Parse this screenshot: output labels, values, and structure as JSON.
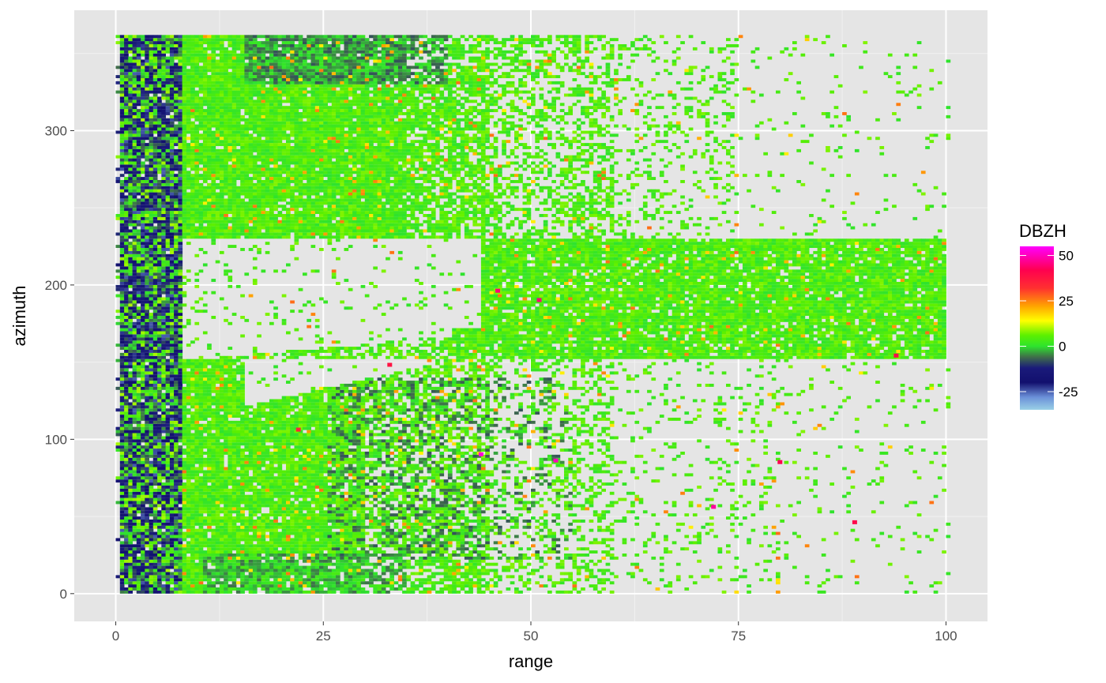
{
  "chart_data": {
    "type": "heatmap",
    "title": "",
    "xlabel": "range",
    "ylabel": "azimuth",
    "xlim": [
      -5,
      105
    ],
    "ylim": [
      -18,
      378
    ],
    "x_ticks": [
      0,
      25,
      50,
      75,
      100
    ],
    "x_tick_labels": [
      "0",
      "25",
      "50",
      "75",
      "100"
    ],
    "y_ticks": [
      0,
      100,
      200,
      300
    ],
    "y_tick_labels": [
      "0",
      "100",
      "200",
      "300"
    ],
    "grid": true,
    "range_resolution": 0.5,
    "azimuth_resolution": 1,
    "legend": {
      "title": "DBZH",
      "position": "right",
      "limits": [
        -35,
        55
      ],
      "breaks": [
        -25,
        0,
        25,
        50
      ],
      "break_labels": [
        "-25",
        "0",
        "25",
        "50"
      ],
      "colors": [
        {
          "value": -35,
          "color": "#9ad0e6"
        },
        {
          "value": -28,
          "color": "#6a8fd8"
        },
        {
          "value": -20,
          "color": "#12106e"
        },
        {
          "value": -12,
          "color": "#1a1a7a"
        },
        {
          "value": -6,
          "color": "#3f6d4a"
        },
        {
          "value": 0,
          "color": "#2ee32e"
        },
        {
          "value": 6,
          "color": "#5cf000"
        },
        {
          "value": 14,
          "color": "#ffff00"
        },
        {
          "value": 22,
          "color": "#ffa500"
        },
        {
          "value": 32,
          "color": "#ff3030"
        },
        {
          "value": 42,
          "color": "#ff0050"
        },
        {
          "value": 55,
          "color": "#ff00ff"
        }
      ]
    },
    "summary": {
      "range_min": 0,
      "range_max": 100,
      "azimuth_min": 0,
      "azimuth_max": 360,
      "echo_regions": [
        {
          "feature": "dense near-range ring",
          "range": [
            0,
            8
          ],
          "azimuth": [
            0,
            360
          ],
          "typical_dbzh": -15
        },
        {
          "feature": "main echo north",
          "range": [
            3,
            72
          ],
          "azimuth": [
            230,
            360
          ],
          "typical_dbzh": 4
        },
        {
          "feature": "main echo south",
          "range": [
            3,
            65
          ],
          "azimuth": [
            0,
            150
          ],
          "typical_dbzh": 3
        },
        {
          "feature": "east-southeast band",
          "range": [
            40,
            100
          ],
          "azimuth": [
            150,
            240
          ],
          "typical_dbzh": 6
        },
        {
          "feature": "clear gap",
          "range": [
            8,
            45
          ],
          "azimuth": [
            170,
            240
          ],
          "typical_dbzh": null
        }
      ],
      "hot_spots": [
        {
          "range": 46,
          "azimuth": 196,
          "dbzh": 45
        },
        {
          "range": 51,
          "azimuth": 190,
          "dbzh": 45
        },
        {
          "range": 44,
          "azimuth": 90,
          "dbzh": 52
        },
        {
          "range": 53,
          "azimuth": 86,
          "dbzh": 50
        },
        {
          "range": 80,
          "azimuth": 85,
          "dbzh": 42
        },
        {
          "range": 94,
          "azimuth": 154,
          "dbzh": 40
        },
        {
          "range": 72,
          "azimuth": 56,
          "dbzh": 48
        },
        {
          "range": 89,
          "azimuth": 46,
          "dbzh": 40
        },
        {
          "range": 33,
          "azimuth": 148,
          "dbzh": 38
        },
        {
          "range": 22,
          "azimuth": 106,
          "dbzh": 35
        }
      ]
    }
  }
}
